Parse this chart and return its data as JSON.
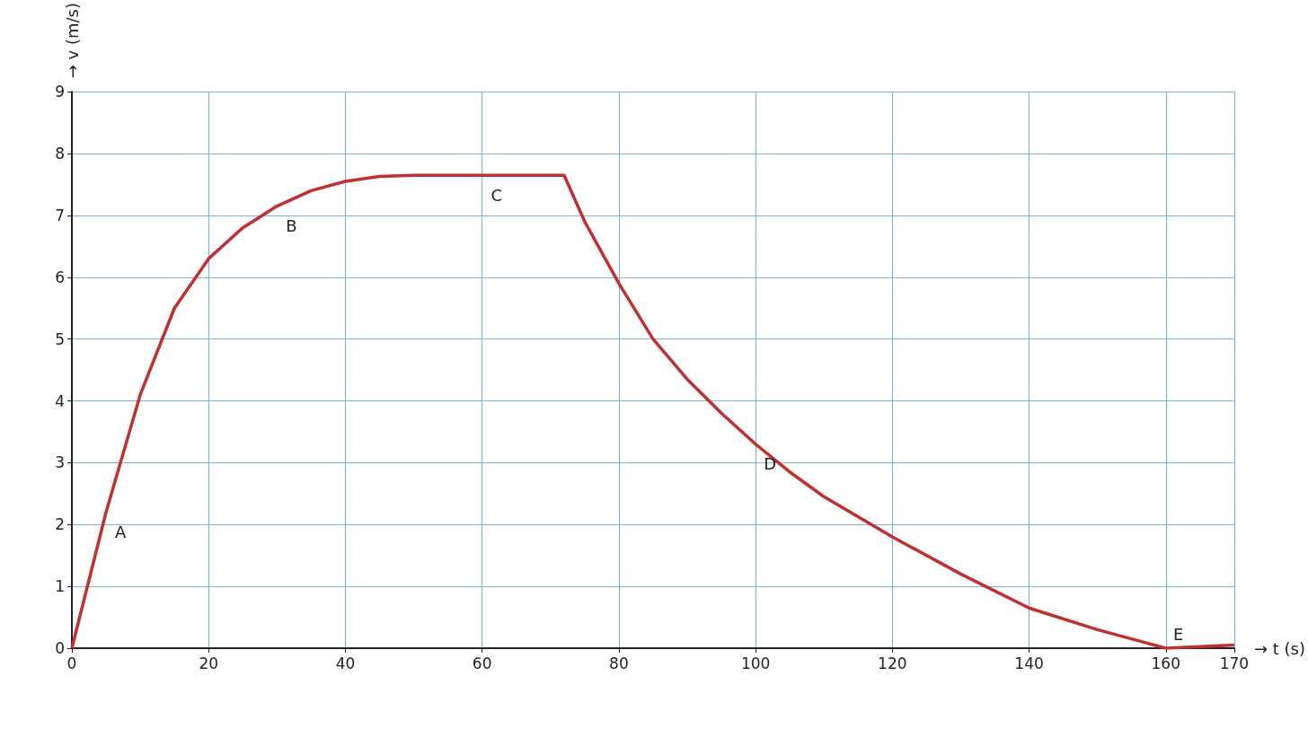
{
  "chart_data": {
    "type": "line",
    "xlabel": "→ t (s)",
    "ylabel": "→ v (m/s)",
    "x": [
      0,
      5,
      10,
      15,
      20,
      25,
      30,
      35,
      40,
      45,
      50,
      60,
      72,
      75,
      80,
      85,
      90,
      95,
      100,
      105,
      110,
      120,
      130,
      140,
      150,
      160,
      170
    ],
    "series": [
      {
        "color": "#c0302f",
        "values": [
          0,
          2.2,
          4.1,
          5.5,
          6.3,
          6.8,
          7.15,
          7.4,
          7.55,
          7.63,
          7.65,
          7.65,
          7.65,
          6.9,
          5.9,
          5.0,
          4.35,
          3.8,
          3.3,
          2.85,
          2.45,
          1.8,
          1.2,
          0.65,
          0.3,
          0,
          0.05
        ]
      }
    ],
    "xlim": [
      0,
      170
    ],
    "xticks": [
      0,
      20,
      40,
      60,
      80,
      100,
      120,
      140,
      160,
      170
    ],
    "ylim": [
      0,
      9
    ],
    "yticks": [
      0,
      1,
      2,
      3,
      4,
      5,
      6,
      7,
      8,
      9
    ],
    "grid": true,
    "marker": "none",
    "line_style": "solid",
    "annotations": [
      {
        "text": "A",
        "x": 5,
        "y": 2.2
      },
      {
        "text": "B",
        "x": 30,
        "y": 7.15
      },
      {
        "text": "C",
        "x": 60,
        "y": 7.65
      },
      {
        "text": "D",
        "x": 100,
        "y": 3.3
      },
      {
        "text": "E",
        "x": 160,
        "y": 0
      }
    ]
  }
}
